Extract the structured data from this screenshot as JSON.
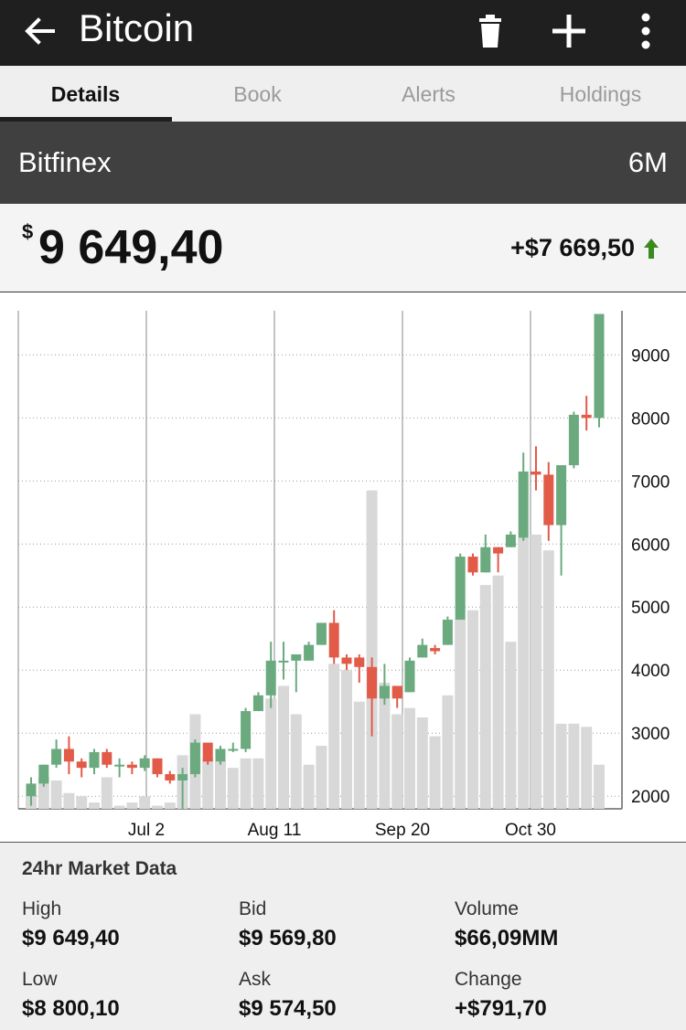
{
  "appbar": {
    "title": "Bitcoin",
    "back_icon": "arrow-left-icon",
    "actions": [
      "trash-icon",
      "plus-icon",
      "more-vertical-icon"
    ]
  },
  "tabs": [
    {
      "label": "Details",
      "active": true
    },
    {
      "label": "Book",
      "active": false
    },
    {
      "label": "Alerts",
      "active": false
    },
    {
      "label": "Holdings",
      "active": false
    }
  ],
  "exchange": {
    "name": "Bitfinex",
    "range": "6M"
  },
  "price": {
    "currency": "$",
    "value": "9 649,40",
    "change": "+$7 669,50",
    "trend_icon": "arrow-up-icon"
  },
  "colors": {
    "up": "#6aaa7e",
    "down": "#e25a48",
    "volume": "#d8d8d8",
    "trend": "#3a8a1e"
  },
  "chart_data": {
    "type": "candlestick",
    "x_ticks": [
      "Jul 2",
      "Aug 11",
      "Sep 20",
      "Oct 30"
    ],
    "y_ticks": [
      2000,
      3000,
      4000,
      5000,
      6000,
      7000,
      8000,
      9000
    ],
    "ylim": [
      1800,
      9700
    ],
    "grid": true,
    "candles": [
      [
        2000,
        2200,
        1850,
        2300
      ],
      [
        2200,
        2500,
        2150,
        2500
      ],
      [
        2500,
        2750,
        2450,
        2900
      ],
      [
        2750,
        2550,
        2350,
        2950
      ],
      [
        2550,
        2450,
        2300,
        2600
      ],
      [
        2450,
        2700,
        2350,
        2750
      ],
      [
        2700,
        2500,
        2450,
        2750
      ],
      [
        2500,
        2500,
        2300,
        2600
      ],
      [
        2500,
        2450,
        2350,
        2550
      ],
      [
        2450,
        2600,
        2400,
        2650
      ],
      [
        2600,
        2350,
        2300,
        2600
      ],
      [
        2350,
        2250,
        2200,
        2400
      ],
      [
        2250,
        2350,
        1800,
        2450
      ],
      [
        2350,
        2850,
        2300,
        2900
      ],
      [
        2850,
        2550,
        2500,
        2850
      ],
      [
        2550,
        2750,
        2500,
        2800
      ],
      [
        2750,
        2750,
        2700,
        2850
      ],
      [
        2750,
        3350,
        2700,
        3400
      ],
      [
        3350,
        3600,
        3350,
        3650
      ],
      [
        3600,
        4150,
        3400,
        4450
      ],
      [
        4150,
        4150,
        3850,
        4450
      ],
      [
        4150,
        4250,
        3650,
        4250
      ],
      [
        4150,
        4400,
        4200,
        4450
      ],
      [
        4400,
        4750,
        4400,
        4750
      ],
      [
        4750,
        4200,
        4100,
        4950
      ],
      [
        4200,
        4100,
        4000,
        4250
      ],
      [
        4200,
        4050,
        3800,
        4250
      ],
      [
        4050,
        3550,
        2950,
        4200
      ],
      [
        3550,
        3750,
        3450,
        4100
      ],
      [
        3750,
        3550,
        3400,
        3750
      ],
      [
        3650,
        4150,
        3650,
        4200
      ],
      [
        4200,
        4400,
        4200,
        4500
      ],
      [
        4350,
        4300,
        4250,
        4400
      ],
      [
        4400,
        4800,
        4400,
        4850
      ],
      [
        4800,
        5800,
        4800,
        5850
      ],
      [
        5800,
        5550,
        5500,
        5850
      ],
      [
        5550,
        5950,
        5550,
        6150
      ],
      [
        5950,
        5850,
        5550,
        5950
      ],
      [
        5950,
        6150,
        5950,
        6200
      ],
      [
        6100,
        7150,
        6050,
        7450
      ],
      [
        7150,
        7100,
        6850,
        7550
      ],
      [
        7100,
        6300,
        6050,
        7300
      ],
      [
        6300,
        7250,
        5500,
        7250
      ],
      [
        7250,
        8050,
        7200,
        8100
      ],
      [
        8050,
        8000,
        7800,
        8350
      ],
      [
        8000,
        9649,
        7850,
        9649
      ]
    ],
    "volume": [
      2000,
      2300,
      2250,
      2050,
      2000,
      1900,
      2300,
      1850,
      1900,
      2000,
      1850,
      1900,
      2650,
      3300,
      2600,
      2550,
      2450,
      2600,
      2600,
      3550,
      3750,
      3300,
      2500,
      2800,
      4100,
      4000,
      3500,
      6850,
      3800,
      3300,
      3400,
      3250,
      2950,
      3600,
      4800,
      4950,
      5350,
      5500,
      4450,
      6100,
      6150,
      5900,
      3150,
      3150,
      3100,
      2500
    ]
  },
  "market": {
    "heading": "24hr Market Data",
    "cells": [
      {
        "label": "High",
        "value": "$9 649,40"
      },
      {
        "label": "Bid",
        "value": "$9 569,80"
      },
      {
        "label": "Volume",
        "value": "$66,09MM"
      },
      {
        "label": "Low",
        "value": "$8 800,10"
      },
      {
        "label": "Ask",
        "value": "$9 574,50"
      },
      {
        "label": "Change",
        "value": "+$791,70"
      }
    ]
  }
}
